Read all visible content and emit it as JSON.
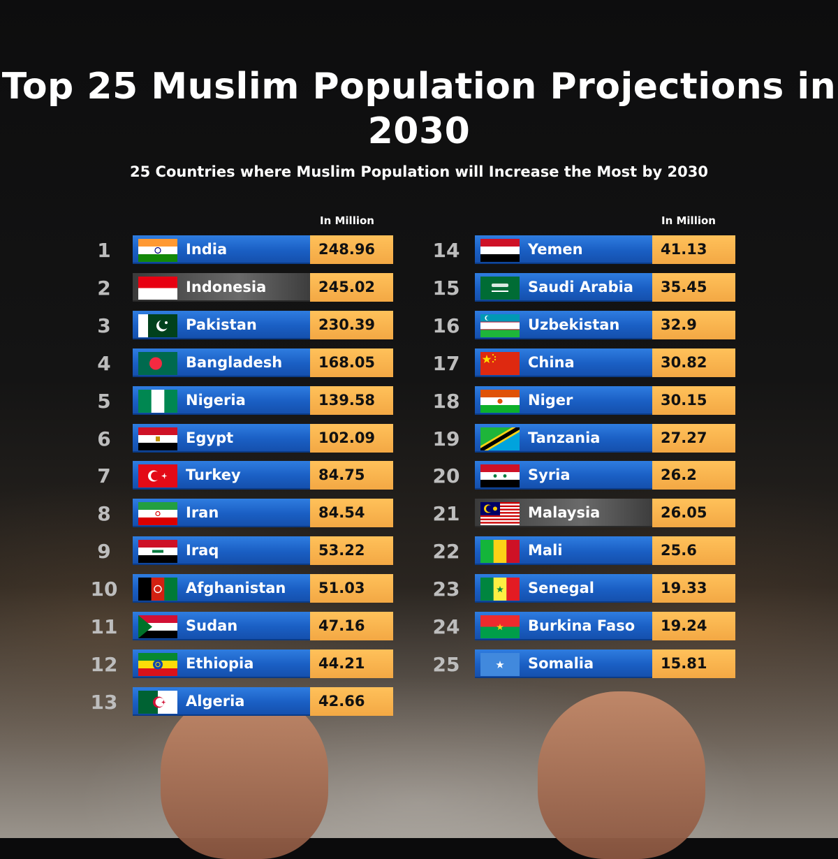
{
  "chart_data": {
    "type": "table",
    "title": "Top 25 Muslim Population Projections in 2030",
    "subtitle": "25 Countries where Muslim Population will Increase the Most by 2030",
    "unit_label": "In Million",
    "columns": [
      {
        "unit_label": "In Million",
        "rows": [
          {
            "rank": "1",
            "country": "India",
            "value": "248.96",
            "flag": "india-flag-icon"
          },
          {
            "rank": "2",
            "country": "Indonesia",
            "value": "245.02",
            "flag": "indonesia-flag-icon"
          },
          {
            "rank": "3",
            "country": "Pakistan",
            "value": "230.39",
            "flag": "pakistan-flag-icon"
          },
          {
            "rank": "4",
            "country": "Bangladesh",
            "value": "168.05",
            "flag": "bangladesh-flag-icon"
          },
          {
            "rank": "5",
            "country": "Nigeria",
            "value": "139.58",
            "flag": "nigeria-flag-icon"
          },
          {
            "rank": "6",
            "country": "Egypt",
            "value": "102.09",
            "flag": "egypt-flag-icon"
          },
          {
            "rank": "7",
            "country": "Turkey",
            "value": "84.75",
            "flag": "turkey-flag-icon"
          },
          {
            "rank": "8",
            "country": "Iran",
            "value": "84.54",
            "flag": "iran-flag-icon"
          },
          {
            "rank": "9",
            "country": "Iraq",
            "value": "53.22",
            "flag": "iraq-flag-icon"
          },
          {
            "rank": "10",
            "country": "Afghanistan",
            "value": "51.03",
            "flag": "afghanistan-flag-icon"
          },
          {
            "rank": "11",
            "country": "Sudan",
            "value": "47.16",
            "flag": "sudan-flag-icon"
          },
          {
            "rank": "12",
            "country": "Ethiopia",
            "value": "44.21",
            "flag": "ethiopia-flag-icon"
          },
          {
            "rank": "13",
            "country": "Algeria",
            "value": "42.66",
            "flag": "algeria-flag-icon"
          }
        ]
      },
      {
        "unit_label": "In Million",
        "rows": [
          {
            "rank": "14",
            "country": "Yemen",
            "value": "41.13",
            "flag": "yemen-flag-icon"
          },
          {
            "rank": "15",
            "country": "Saudi Arabia",
            "value": "35.45",
            "flag": "saudi-arabia-flag-icon"
          },
          {
            "rank": "16",
            "country": "Uzbekistan",
            "value": "32.9",
            "flag": "uzbekistan-flag-icon"
          },
          {
            "rank": "17",
            "country": "China",
            "value": "30.82",
            "flag": "china-flag-icon"
          },
          {
            "rank": "18",
            "country": "Niger",
            "value": "30.15",
            "flag": "niger-flag-icon"
          },
          {
            "rank": "19",
            "country": "Tanzania",
            "value": "27.27",
            "flag": "tanzania-flag-icon"
          },
          {
            "rank": "20",
            "country": "Syria",
            "value": "26.2",
            "flag": "syria-flag-icon"
          },
          {
            "rank": "21",
            "country": "Malaysia",
            "value": "26.05",
            "flag": "malaysia-flag-icon"
          },
          {
            "rank": "22",
            "country": "Mali",
            "value": "25.6",
            "flag": "mali-flag-icon"
          },
          {
            "rank": "23",
            "country": "Senegal",
            "value": "19.33",
            "flag": "senegal-flag-icon"
          },
          {
            "rank": "24",
            "country": "Burkina Faso",
            "value": "19.24",
            "flag": "burkina-faso-flag-icon"
          },
          {
            "rank": "25",
            "country": "Somalia",
            "value": "15.81",
            "flag": "somalia-flag-icon"
          }
        ]
      }
    ]
  },
  "colors": {
    "bar_blue": "#1a5fc4",
    "bar_highlight_gray": "#5a5a5a",
    "value_orange": "#f3a844",
    "rank_gray": "#bdbdbd"
  },
  "highlighted_countries": [
    "Indonesia",
    "Malaysia"
  ]
}
